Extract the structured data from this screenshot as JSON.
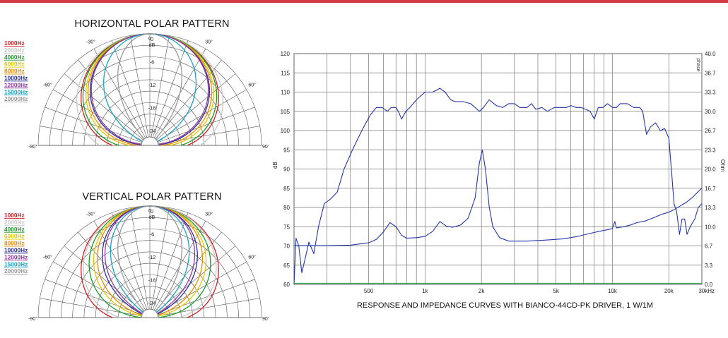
{
  "colors": {
    "accent_rule": "#d33a3f"
  },
  "legend_colors": [
    "#d21f26",
    "#c8c8c8",
    "#1a9a2a",
    "#e0c800",
    "#f08c00",
    "#2e3192",
    "#8e3a9d",
    "#1ba3c4",
    "#9a9a9a"
  ],
  "chart_data": [
    {
      "type": "polar",
      "title": "HORIZONTAL POLAR PATTERN",
      "angle_labels": [
        "-90°",
        "-60°",
        "-30°",
        "0",
        "30°",
        "60°",
        "90°"
      ],
      "radial_unit": "dB",
      "radial_labels": [
        "0",
        "-6",
        "-12",
        "-18",
        "-24"
      ],
      "rlim": [
        -27,
        0
      ],
      "series": [
        {
          "name": "1000Hz",
          "color": "#d21f26",
          "beamwidth_deg": 100
        },
        {
          "name": "2000Hz",
          "color": "#c8c8c8",
          "beamwidth_deg": 110
        },
        {
          "name": "4000Hz",
          "color": "#1a9a2a",
          "beamwidth_deg": 96
        },
        {
          "name": "6000Hz",
          "color": "#e0c800",
          "beamwidth_deg": 90
        },
        {
          "name": "8000Hz",
          "color": "#f08c00",
          "beamwidth_deg": 86
        },
        {
          "name": "10000Hz",
          "color": "#2e3192",
          "beamwidth_deg": 82
        },
        {
          "name": "12000Hz",
          "color": "#8e3a9d",
          "beamwidth_deg": 80
        },
        {
          "name": "15000Hz",
          "color": "#1ba3c4",
          "beamwidth_deg": 60
        },
        {
          "name": "20000Hz",
          "color": "#9a9a9a",
          "beamwidth_deg": 40
        }
      ]
    },
    {
      "type": "polar",
      "title": "VERTICAL POLAR PATTERN",
      "angle_labels": [
        "-90°",
        "-60°",
        "-30°",
        "0",
        "30°",
        "60°",
        "90°"
      ],
      "radial_unit": "dB",
      "radial_labels": [
        "0",
        "-6",
        "-12",
        "-18",
        "-24"
      ],
      "rlim": [
        -27,
        0
      ],
      "series": [
        {
          "name": "1000Hz",
          "color": "#d21f26",
          "beamwidth_deg": 100
        },
        {
          "name": "2000Hz",
          "color": "#c8c8c8",
          "beamwidth_deg": 95
        },
        {
          "name": "4000Hz",
          "color": "#1a9a2a",
          "beamwidth_deg": 84
        },
        {
          "name": "6000Hz",
          "color": "#e0c800",
          "beamwidth_deg": 76
        },
        {
          "name": "8000Hz",
          "color": "#f08c00",
          "beamwidth_deg": 70
        },
        {
          "name": "10000Hz",
          "color": "#2e3192",
          "beamwidth_deg": 62
        },
        {
          "name": "12000Hz",
          "color": "#8e3a9d",
          "beamwidth_deg": 58
        },
        {
          "name": "15000Hz",
          "color": "#1ba3c4",
          "beamwidth_deg": 50
        },
        {
          "name": "20000Hz",
          "color": "#9a9a9a",
          "beamwidth_deg": 40
        }
      ]
    },
    {
      "type": "line",
      "title": "RESPONSE AND IMPEDANCE CURVES WITH BIANCO-44CD-PK DRIVER, 1 W/1M",
      "xscale": "log",
      "xlim": [
        200,
        30000
      ],
      "x_ticks": [
        {
          "value": 500,
          "label": "500"
        },
        {
          "value": 1000,
          "label": "1k"
        },
        {
          "value": 2000,
          "label": "2k"
        },
        {
          "value": 5000,
          "label": "5k"
        },
        {
          "value": 10000,
          "label": "10k"
        },
        {
          "value": 20000,
          "label": "20k"
        },
        {
          "value": 30000,
          "label": "30kHz"
        }
      ],
      "ylabel": "dB",
      "ylim": [
        60,
        120
      ],
      "yticks": [
        "60",
        "65",
        "70",
        "75",
        "80",
        "85",
        "90",
        "95",
        "100",
        "105",
        "110",
        "115",
        "120"
      ],
      "y2label": "Ohm",
      "y2lim": [
        0,
        40
      ],
      "y2ticks": [
        "0.0",
        "3.3",
        "6.7",
        "10.0",
        "13.3",
        "16.7",
        "20.0",
        "23.3",
        "26.7",
        "30.0",
        "33.3",
        "36.7",
        "40.0"
      ],
      "y2_top_label": "phase",
      "grid": true,
      "series": [
        {
          "name": "response",
          "axis": "left",
          "color": "#2436a8",
          "points": [
            [
              200,
              60
            ],
            [
              205,
              72
            ],
            [
              212,
              70
            ],
            [
              220,
              63
            ],
            [
              230,
              67
            ],
            [
              240,
              71
            ],
            [
              255,
              68
            ],
            [
              270,
              75
            ],
            [
              290,
              81
            ],
            [
              310,
              82
            ],
            [
              340,
              84
            ],
            [
              370,
              90
            ],
            [
              410,
              95
            ],
            [
              460,
              100
            ],
            [
              510,
              104
            ],
            [
              550,
              106
            ],
            [
              590,
              106
            ],
            [
              630,
              105
            ],
            [
              660,
              106
            ],
            [
              700,
              106
            ],
            [
              720,
              105
            ],
            [
              750,
              103
            ],
            [
              790,
              105
            ],
            [
              830,
              106
            ],
            [
              900,
              108
            ],
            [
              1000,
              110
            ],
            [
              1100,
              110
            ],
            [
              1200,
              111
            ],
            [
              1280,
              110
            ],
            [
              1370,
              108
            ],
            [
              1450,
              107.5
            ],
            [
              1600,
              107.5
            ],
            [
              1750,
              107
            ],
            [
              1850,
              106
            ],
            [
              1950,
              105
            ],
            [
              2050,
              106
            ],
            [
              2200,
              108
            ],
            [
              2400,
              106.5
            ],
            [
              2600,
              106
            ],
            [
              2800,
              107
            ],
            [
              3000,
              107
            ],
            [
              3200,
              106
            ],
            [
              3500,
              106
            ],
            [
              3700,
              107
            ],
            [
              3900,
              105.5
            ],
            [
              4200,
              106
            ],
            [
              4500,
              105
            ],
            [
              4900,
              106
            ],
            [
              5300,
              106
            ],
            [
              5700,
              106
            ],
            [
              6000,
              106.5
            ],
            [
              6400,
              106
            ],
            [
              6800,
              106
            ],
            [
              7200,
              105.5
            ],
            [
              7600,
              105
            ],
            [
              8000,
              103
            ],
            [
              8400,
              106
            ],
            [
              8900,
              106
            ],
            [
              9400,
              107
            ],
            [
              10000,
              106
            ],
            [
              10500,
              106
            ],
            [
              11000,
              107
            ],
            [
              12000,
              107
            ],
            [
              13000,
              106
            ],
            [
              14000,
              106
            ],
            [
              14500,
              105
            ],
            [
              15200,
              99
            ],
            [
              16000,
              101
            ],
            [
              17000,
              102
            ],
            [
              18000,
              100
            ],
            [
              19000,
              100.5
            ],
            [
              20000,
              98
            ],
            [
              20700,
              89
            ],
            [
              21300,
              81
            ],
            [
              22000,
              79
            ],
            [
              22800,
              73
            ],
            [
              23500,
              77
            ],
            [
              24300,
              77
            ],
            [
              25000,
              73
            ],
            [
              26000,
              75
            ],
            [
              27500,
              77
            ],
            [
              28700,
              80
            ],
            [
              30000,
              81
            ]
          ]
        },
        {
          "name": "impedance",
          "axis": "right",
          "color": "#2436a8",
          "points": [
            [
              200,
              6.7
            ],
            [
              300,
              6.7
            ],
            [
              400,
              6.8
            ],
            [
              500,
              7.2
            ],
            [
              550,
              7.8
            ],
            [
              600,
              9.1
            ],
            [
              650,
              10.7
            ],
            [
              700,
              10.0
            ],
            [
              750,
              8.5
            ],
            [
              800,
              8.0
            ],
            [
              900,
              8.1
            ],
            [
              1000,
              8.3
            ],
            [
              1100,
              9.2
            ],
            [
              1200,
              10.9
            ],
            [
              1300,
              10.1
            ],
            [
              1400,
              9.9
            ],
            [
              1550,
              10.3
            ],
            [
              1700,
              11.5
            ],
            [
              1850,
              15.0
            ],
            [
              1950,
              21.0
            ],
            [
              2020,
              23.3
            ],
            [
              2100,
              20.0
            ],
            [
              2200,
              13.5
            ],
            [
              2300,
              10.0
            ],
            [
              2500,
              8.1
            ],
            [
              2800,
              7.5
            ],
            [
              3500,
              7.5
            ],
            [
              4500,
              7.7
            ],
            [
              5500,
              7.9
            ],
            [
              6500,
              8.3
            ],
            [
              7500,
              8.8
            ],
            [
              8500,
              9.2
            ],
            [
              9500,
              9.5
            ],
            [
              10000,
              9.7
            ],
            [
              10300,
              10.9
            ],
            [
              10500,
              9.8
            ],
            [
              11500,
              10.0
            ],
            [
              12500,
              10.3
            ],
            [
              13500,
              10.7
            ],
            [
              15000,
              11.0
            ],
            [
              17000,
              11.7
            ],
            [
              18500,
              12.2
            ],
            [
              20000,
              12.5
            ],
            [
              21500,
              13.0
            ],
            [
              23000,
              13.6
            ],
            [
              25000,
              14.3
            ],
            [
              27000,
              15.2
            ],
            [
              28500,
              16.0
            ],
            [
              30000,
              16.7
            ]
          ]
        },
        {
          "name": "phase",
          "axis": "right",
          "color": "#2aa84a",
          "points": [
            [
              200,
              0.2
            ],
            [
              30000,
              0.2
            ]
          ]
        }
      ]
    }
  ]
}
